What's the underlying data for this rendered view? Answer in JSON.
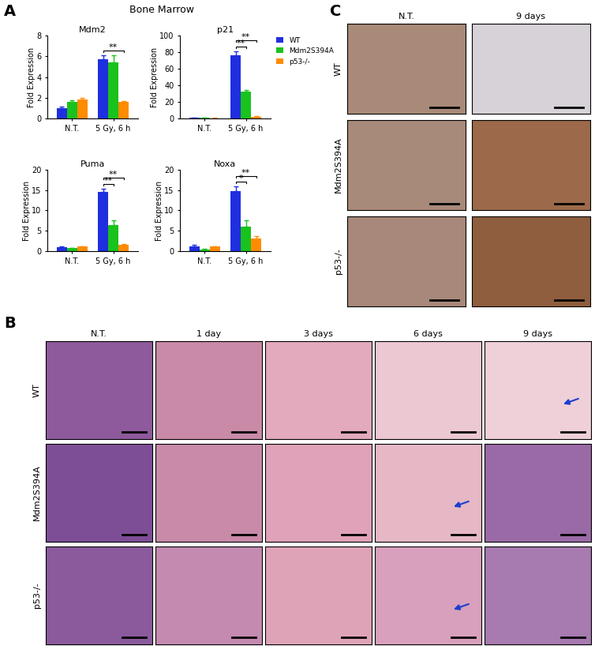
{
  "title": "Bone Marrow",
  "panel_labels": [
    "A",
    "B",
    "C"
  ],
  "chart_data": [
    {
      "type": "bar",
      "title": "Mdm2",
      "ylabel": "Fold Expression",
      "categories": [
        "N.T.",
        "5 Gy, 6 h"
      ],
      "ylim": [
        0,
        8
      ],
      "yticks": [
        0,
        2,
        4,
        6,
        8
      ],
      "series": [
        {
          "name": "WT",
          "color": "#1f2fe0",
          "values": [
            1.0,
            5.7
          ],
          "errors": [
            0.12,
            0.4
          ]
        },
        {
          "name": "Mdm2S394A",
          "color": "#19c21c",
          "values": [
            1.6,
            5.4
          ],
          "errors": [
            0.12,
            0.7
          ]
        },
        {
          "name": "p53-/-",
          "color": "#ff8c00",
          "values": [
            1.8,
            1.6
          ],
          "errors": [
            0.2,
            0.1
          ]
        }
      ],
      "annotations": [
        {
          "category": "5 Gy, 6 h",
          "between": [
            "WT",
            "p53-/-"
          ],
          "text": "**"
        }
      ]
    },
    {
      "type": "bar",
      "title": "p21",
      "ylabel": "Fold Expression",
      "categories": [
        "N.T.",
        "5 Gy, 6 h"
      ],
      "ylim": [
        0,
        100
      ],
      "yticks": [
        0,
        20,
        40,
        60,
        80,
        100
      ],
      "legend": "upper left",
      "series": [
        {
          "name": "WT",
          "color": "#1f2fe0",
          "values": [
            1.0,
            76
          ],
          "errors": [
            0.2,
            5
          ]
        },
        {
          "name": "Mdm2S394A",
          "color": "#19c21c",
          "values": [
            0.5,
            32
          ],
          "errors": [
            0.1,
            2
          ]
        },
        {
          "name": "p53-/-",
          "color": "#ff8c00",
          "values": [
            0.4,
            2
          ],
          "errors": [
            0.1,
            0.4
          ]
        }
      ],
      "annotations": [
        {
          "category": "5 Gy, 6 h",
          "between": [
            "WT",
            "Mdm2S394A"
          ],
          "text": "**"
        },
        {
          "category": "5 Gy, 6 h",
          "between": [
            "WT",
            "p53-/-"
          ],
          "text": "**"
        }
      ]
    },
    {
      "type": "bar",
      "title": "Puma",
      "ylabel": "Fold Expression",
      "categories": [
        "N.T.",
        "5 Gy, 6 h"
      ],
      "ylim": [
        0,
        20
      ],
      "yticks": [
        0,
        5,
        10,
        15,
        20
      ],
      "series": [
        {
          "name": "WT",
          "color": "#1f2fe0",
          "values": [
            1.0,
            14.5
          ],
          "errors": [
            0.15,
            0.9
          ]
        },
        {
          "name": "Mdm2S394A",
          "color": "#19c21c",
          "values": [
            0.7,
            6.5
          ],
          "errors": [
            0.1,
            1.0
          ]
        },
        {
          "name": "p53-/-",
          "color": "#ff8c00",
          "values": [
            1.1,
            1.5
          ],
          "errors": [
            0.1,
            0.2
          ]
        }
      ],
      "annotations": [
        {
          "category": "5 Gy, 6 h",
          "between": [
            "WT",
            "Mdm2S394A"
          ],
          "text": "**"
        },
        {
          "category": "5 Gy, 6 h",
          "between": [
            "WT",
            "p53-/-"
          ],
          "text": "**"
        }
      ]
    },
    {
      "type": "bar",
      "title": "Noxa",
      "ylabel": "Fold Expression",
      "categories": [
        "N.T.",
        "5 Gy, 6 h"
      ],
      "ylim": [
        0,
        20
      ],
      "yticks": [
        0,
        5,
        10,
        15,
        20
      ],
      "series": [
        {
          "name": "WT",
          "color": "#1f2fe0",
          "values": [
            1.2,
            14.8
          ],
          "errors": [
            0.4,
            1.1
          ]
        },
        {
          "name": "Mdm2S394A",
          "color": "#19c21c",
          "values": [
            0.4,
            6.0
          ],
          "errors": [
            0.1,
            1.5
          ]
        },
        {
          "name": "p53-/-",
          "color": "#ff8c00",
          "values": [
            1.1,
            3.2
          ],
          "errors": [
            0.1,
            0.4
          ]
        }
      ],
      "annotations": [
        {
          "category": "5 Gy, 6 h",
          "between": [
            "WT",
            "Mdm2S394A"
          ],
          "text": "*"
        },
        {
          "category": "5 Gy, 6 h",
          "between": [
            "WT",
            "p53-/-"
          ],
          "text": "**"
        }
      ]
    }
  ],
  "panel_B": {
    "columns": [
      "N.T.",
      "1 day",
      "3 days",
      "6 days",
      "9 days"
    ],
    "rows": [
      "WT",
      "Mdm2S394A",
      "p53-/-"
    ]
  },
  "panel_C": {
    "columns": [
      "N.T.",
      "9 days"
    ],
    "rows": [
      "WT",
      "Mdm2S394A",
      "p53-/-"
    ]
  }
}
